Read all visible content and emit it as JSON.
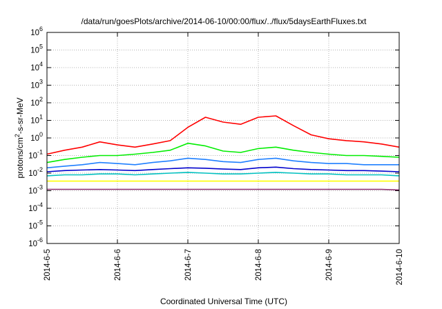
{
  "chart_data": {
    "type": "line",
    "title": "/data/run/goesPlots/archive/2014-06-10/00:00/flux/../flux/5daysEarthFluxes.txt",
    "xlabel": "Coordinated Universal Time (UTC)",
    "ylabel": "protons/cm2-s-sr-MeV",
    "ylabel_parts": {
      "base": "protons/cm",
      "sup": "2",
      "rest": "-s-sr-MeV"
    },
    "y_scale": "log",
    "ylim": [
      1e-06,
      1000000.0
    ],
    "xlim": [
      "2014-6-5",
      "2014-6-10"
    ],
    "x_tick_labels": [
      "2014-6-5",
      "2014-6-6",
      "2014-6-7",
      "2014-6-8",
      "2014-6-9",
      "2014-6-10"
    ],
    "y_tick_labels": [
      {
        "base": "10",
        "exp": "-6"
      },
      {
        "base": "10",
        "exp": "-5"
      },
      {
        "base": "10",
        "exp": "-4"
      },
      {
        "base": "10",
        "exp": "-3"
      },
      {
        "base": "10",
        "exp": "-2"
      },
      {
        "base": "10",
        "exp": "-1"
      },
      {
        "base": "10",
        "exp": "0"
      },
      {
        "base": "10",
        "exp": "1"
      },
      {
        "base": "10",
        "exp": "2"
      },
      {
        "base": "10",
        "exp": "3"
      },
      {
        "base": "10",
        "exp": "4"
      },
      {
        "base": "10",
        "exp": "5"
      },
      {
        "base": "10",
        "exp": "6"
      }
    ],
    "grid": true,
    "x": [
      0,
      0.25,
      0.5,
      0.75,
      1,
      1.25,
      1.5,
      1.75,
      2,
      2.25,
      2.5,
      2.75,
      3,
      3.25,
      3.5,
      3.75,
      4,
      4.25,
      4.5,
      4.75,
      5
    ],
    "series": [
      {
        "color": "#ff0000",
        "values": [
          0.12,
          0.2,
          0.3,
          0.6,
          0.4,
          0.3,
          0.45,
          0.7,
          4,
          15,
          8,
          6,
          15,
          18,
          5,
          1.5,
          0.9,
          0.7,
          0.6,
          0.45,
          0.3
        ]
      },
      {
        "color": "#00ee00",
        "values": [
          0.04,
          0.06,
          0.08,
          0.1,
          0.1,
          0.12,
          0.15,
          0.2,
          0.5,
          0.35,
          0.18,
          0.15,
          0.25,
          0.3,
          0.2,
          0.15,
          0.12,
          0.1,
          0.1,
          0.09,
          0.08
        ]
      },
      {
        "color": "#1e7fff",
        "values": [
          0.02,
          0.025,
          0.03,
          0.04,
          0.035,
          0.03,
          0.04,
          0.05,
          0.07,
          0.06,
          0.045,
          0.04,
          0.06,
          0.07,
          0.05,
          0.04,
          0.035,
          0.035,
          0.03,
          0.03,
          0.03
        ]
      },
      {
        "color": "#0000cc",
        "values": [
          0.012,
          0.014,
          0.015,
          0.016,
          0.015,
          0.014,
          0.016,
          0.018,
          0.02,
          0.019,
          0.017,
          0.016,
          0.02,
          0.022,
          0.018,
          0.016,
          0.015,
          0.014,
          0.014,
          0.013,
          0.012
        ]
      },
      {
        "color": "#00c0c0",
        "values": [
          0.007,
          0.008,
          0.008,
          0.009,
          0.009,
          0.008,
          0.009,
          0.01,
          0.011,
          0.01,
          0.009,
          0.009,
          0.01,
          0.011,
          0.01,
          0.009,
          0.009,
          0.008,
          0.008,
          0.008,
          0.007
        ]
      },
      {
        "color": "#ffff00",
        "values": [
          0.0035,
          0.0035,
          0.0035,
          0.0035,
          0.0035,
          0.0035,
          0.0035,
          0.0035,
          0.0035,
          0.0035,
          0.0035,
          0.0035,
          0.0035,
          0.0035,
          0.0035,
          0.0035,
          0.0035,
          0.0035,
          0.0035,
          0.0035,
          0.0035
        ]
      },
      {
        "color": "#8b2a6b",
        "values": [
          0.0012,
          0.0012,
          0.0012,
          0.0012,
          0.0012,
          0.0012,
          0.0012,
          0.0012,
          0.0012,
          0.0012,
          0.0012,
          0.0012,
          0.0012,
          0.0012,
          0.0012,
          0.0012,
          0.0012,
          0.0012,
          0.0012,
          0.0012,
          0.0011
        ]
      }
    ]
  }
}
